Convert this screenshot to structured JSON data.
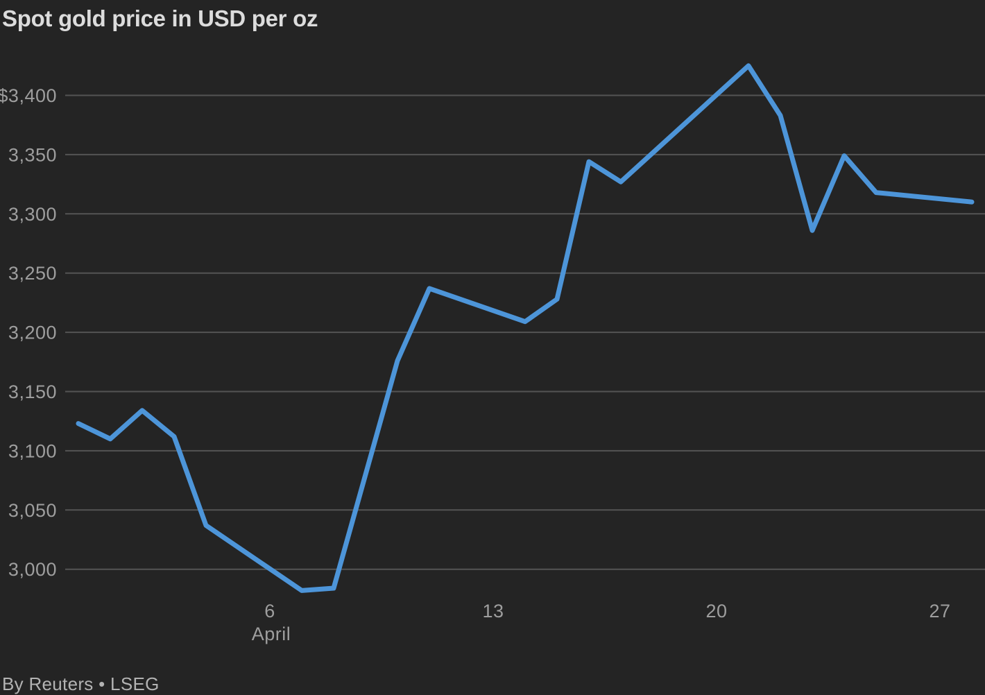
{
  "title": "Spot gold price in USD per oz",
  "attribution": "By Reuters • LSEG",
  "colors": {
    "background": "#242424",
    "line": "#4d95d9",
    "grid": "#545454",
    "axis_label": "#9e9e9e",
    "title": "#dcdcdc",
    "attribution": "#b3b3b3"
  },
  "chart_data": {
    "type": "line",
    "title": "Spot gold price in USD per oz",
    "unit": "USD per oz",
    "grid": true,
    "legend": "none",
    "ylim": [
      2975,
      3432
    ],
    "x_axis": {
      "month_label": "April",
      "ticks": [
        {
          "label": "6",
          "day": 6
        },
        {
          "label": "13",
          "day": 13
        },
        {
          "label": "20",
          "day": 20
        },
        {
          "label": "27",
          "day": 27
        }
      ]
    },
    "y_axis": {
      "ticks": [
        {
          "label": "$3,400",
          "value": 3400
        },
        {
          "label": "3,350",
          "value": 3350
        },
        {
          "label": "3,300",
          "value": 3300
        },
        {
          "label": "3,250",
          "value": 3250
        },
        {
          "label": "3,200",
          "value": 3200
        },
        {
          "label": "3,150",
          "value": 3150
        },
        {
          "label": "3,100",
          "value": 3100
        },
        {
          "label": "3,050",
          "value": 3050
        },
        {
          "label": "3,000",
          "value": 3000
        }
      ]
    },
    "series": [
      {
        "name": "Spot gold price",
        "points": [
          {
            "date": "Mar 31",
            "day": 0,
            "value": 3123
          },
          {
            "date": "Apr 1",
            "day": 1,
            "value": 3110
          },
          {
            "date": "Apr 2",
            "day": 2,
            "value": 3134
          },
          {
            "date": "Apr 3",
            "day": 3,
            "value": 3112
          },
          {
            "date": "Apr 4",
            "day": 4,
            "value": 3037
          },
          {
            "date": "Apr 7",
            "day": 7,
            "value": 2982
          },
          {
            "date": "Apr 8",
            "day": 8,
            "value": 2984
          },
          {
            "date": "Apr 9",
            "day": 9,
            "value": 3080
          },
          {
            "date": "Apr 10",
            "day": 10,
            "value": 3176
          },
          {
            "date": "Apr 11",
            "day": 11,
            "value": 3237
          },
          {
            "date": "Apr 14",
            "day": 14,
            "value": 3209
          },
          {
            "date": "Apr 15",
            "day": 15,
            "value": 3228
          },
          {
            "date": "Apr 16",
            "day": 16,
            "value": 3344
          },
          {
            "date": "Apr 17",
            "day": 17,
            "value": 3327
          },
          {
            "date": "Apr 21",
            "day": 21,
            "value": 3425
          },
          {
            "date": "Apr 22",
            "day": 22,
            "value": 3383
          },
          {
            "date": "Apr 23",
            "day": 23,
            "value": 3286
          },
          {
            "date": "Apr 24",
            "day": 24,
            "value": 3349
          },
          {
            "date": "Apr 25",
            "day": 25,
            "value": 3318
          },
          {
            "date": "Apr 28",
            "day": 28,
            "value": 3310
          }
        ]
      }
    ]
  }
}
